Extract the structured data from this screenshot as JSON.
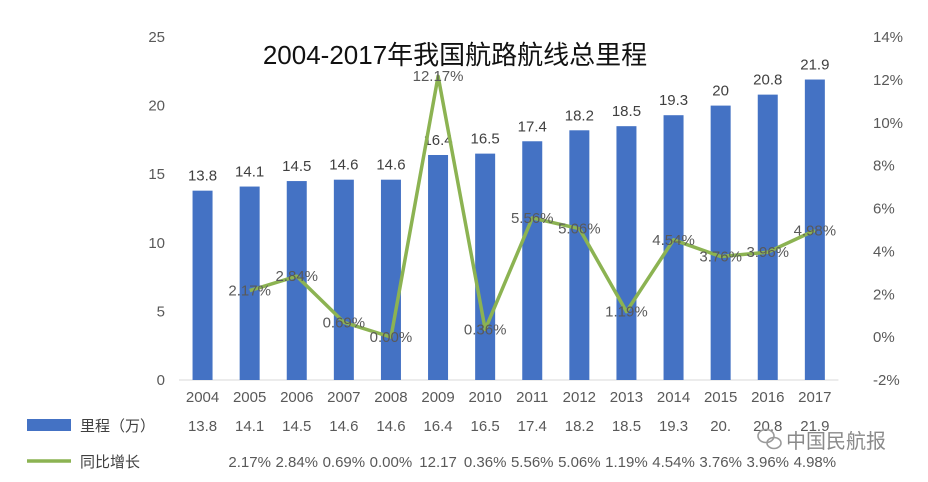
{
  "watermark": "中国民航报",
  "chart_data": {
    "type": "bar+line",
    "title": "2004-2017年我国航路航线总里程",
    "categories": [
      "2004",
      "2005",
      "2006",
      "2007",
      "2008",
      "2009",
      "2010",
      "2011",
      "2012",
      "2013",
      "2014",
      "2015",
      "2016",
      "2017"
    ],
    "series": [
      {
        "name": "里程（万）",
        "type": "bar",
        "axis": "left",
        "color": "#4472C4",
        "values": [
          13.8,
          14.1,
          14.5,
          14.6,
          14.6,
          16.4,
          16.5,
          17.4,
          18.2,
          18.5,
          19.3,
          20,
          20.8,
          21.9
        ],
        "labels": [
          "13.8",
          "14.1",
          "14.5",
          "14.6",
          "14.6",
          "16.4",
          "16.5",
          "17.4",
          "18.2",
          "18.5",
          "19.3",
          "20",
          "20.8",
          "21.9"
        ],
        "table_labels": [
          "13.8",
          "14.1",
          "14.5",
          "14.6",
          "14.6",
          "16.4",
          "16.5",
          "17.4",
          "18.2",
          "18.5",
          "19.3",
          "20.",
          "20.8",
          "21.9"
        ]
      },
      {
        "name": "同比增长",
        "type": "line",
        "axis": "right",
        "color": "#8CB352",
        "values": [
          null,
          2.17,
          2.84,
          0.69,
          0.0,
          12.17,
          0.36,
          5.56,
          5.06,
          1.19,
          4.54,
          3.76,
          3.96,
          4.98
        ],
        "labels": [
          "",
          "2.17%",
          "2.84%",
          "0.69%",
          "0.00%",
          "12.17%",
          "0.36%",
          "5.56%",
          "5.06%",
          "1.19%",
          "4.54%",
          "3.76%",
          "3.96%",
          "4.98%"
        ],
        "table_labels": [
          "",
          "2.17%",
          "2.84%",
          "0.69%",
          "0.00%",
          "12.17",
          "0.36%",
          "5.56%",
          "5.06%",
          "1.19%",
          "4.54%",
          "3.76%",
          "3.96%",
          "4.98%"
        ]
      }
    ],
    "y_left": {
      "lim": [
        0,
        25
      ],
      "ticks": [
        "0",
        "5",
        "10",
        "15",
        "20",
        "25"
      ]
    },
    "y_right": {
      "lim": [
        -2,
        14
      ],
      "ticks": [
        "-2%",
        "0%",
        "2%",
        "4%",
        "6%",
        "8%",
        "10%",
        "12%",
        "14%"
      ]
    },
    "grid": false,
    "legend": "bottom-table"
  }
}
